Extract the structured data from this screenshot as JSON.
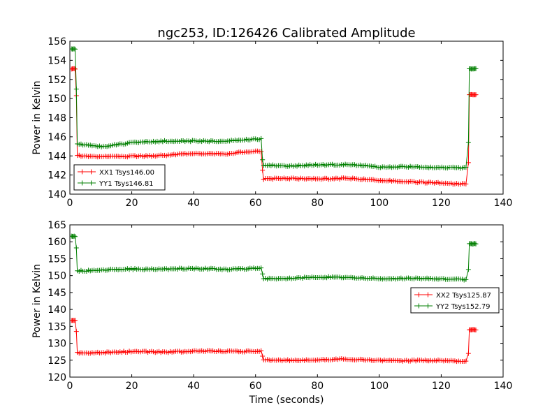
{
  "figure": {
    "title": "ngc253, ID:126426 Calibrated Amplitude",
    "shared_xlabel": "Time (seconds)"
  },
  "chart_data": [
    {
      "type": "line",
      "title": "ngc253, ID:126426 Calibrated Amplitude",
      "xlabel": "",
      "ylabel": "Power in Kelvin",
      "xlim": [
        0,
        140
      ],
      "ylim": [
        140,
        156
      ],
      "xticks": [
        0,
        20,
        40,
        60,
        80,
        100,
        120,
        140
      ],
      "yticks": [
        140,
        142,
        144,
        146,
        148,
        150,
        152,
        154,
        156
      ],
      "grid": false,
      "legend_position": "lower-left",
      "marker": "+",
      "segments": [
        {
          "x_start": 0.5,
          "x_end": 1.8,
          "step": 0.3
        },
        {
          "x_start": 2.4,
          "x_end": 61.9,
          "step": 0.6
        },
        {
          "x_start": 62.6,
          "x_end": 128.4,
          "step": 0.6
        },
        {
          "x_start": 129.1,
          "x_end": 131.3,
          "step": 0.3
        }
      ],
      "series": [
        {
          "name": "XX1 Tsys146.00",
          "color": "#ff0000",
          "profile": {
            "start_level": 153.1,
            "first_drop_to": 150.3,
            "mid_level_points": [
              [
                2.4,
                144.0
              ],
              [
                10,
                143.9
              ],
              [
                20,
                144.0
              ],
              [
                30,
                144.0
              ],
              [
                40,
                144.3
              ],
              [
                50,
                144.2
              ],
              [
                58,
                144.4
              ],
              [
                61.9,
                144.5
              ]
            ],
            "second_drop_to": 142.5,
            "low_level_points": [
              [
                62.6,
                141.6
              ],
              [
                70,
                141.6
              ],
              [
                80,
                141.6
              ],
              [
                90,
                141.7
              ],
              [
                100,
                141.4
              ],
              [
                110,
                141.3
              ],
              [
                120,
                141.2
              ],
              [
                128.4,
                141.0
              ]
            ],
            "rise_from": 143.3,
            "end_level": 150.4
          }
        },
        {
          "name": "YY1 Tsys146.81",
          "color": "#007f00",
          "profile": {
            "start_level": 155.2,
            "first_drop_to": 151.0,
            "mid_level_points": [
              [
                2.4,
                145.2
              ],
              [
                10,
                145.0
              ],
              [
                20,
                145.4
              ],
              [
                30,
                145.5
              ],
              [
                40,
                145.6
              ],
              [
                50,
                145.5
              ],
              [
                58,
                145.7
              ],
              [
                61.9,
                145.8
              ]
            ],
            "second_drop_to": 143.6,
            "low_level_points": [
              [
                62.6,
                143.0
              ],
              [
                70,
                142.9
              ],
              [
                80,
                143.1
              ],
              [
                90,
                143.1
              ],
              [
                100,
                142.8
              ],
              [
                110,
                142.9
              ],
              [
                120,
                142.8
              ],
              [
                128.4,
                142.7
              ]
            ],
            "rise_from": 145.4,
            "end_level": 153.1
          }
        }
      ]
    },
    {
      "type": "line",
      "title": "",
      "xlabel": "Time (seconds)",
      "ylabel": "Power in Kelvin",
      "xlim": [
        0,
        140
      ],
      "ylim": [
        120,
        165
      ],
      "xticks": [
        0,
        20,
        40,
        60,
        80,
        100,
        120,
        140
      ],
      "yticks": [
        120,
        125,
        130,
        135,
        140,
        145,
        150,
        155,
        160,
        165
      ],
      "grid": false,
      "legend_position": "right",
      "marker": "+",
      "segments": [
        {
          "x_start": 0.5,
          "x_end": 1.8,
          "step": 0.3
        },
        {
          "x_start": 2.4,
          "x_end": 61.9,
          "step": 0.6
        },
        {
          "x_start": 62.6,
          "x_end": 128.4,
          "step": 0.6
        },
        {
          "x_start": 129.1,
          "x_end": 131.3,
          "step": 0.3
        }
      ],
      "series": [
        {
          "name": "XX2 Tsys125.87",
          "color": "#ff0000",
          "profile": {
            "start_level": 136.8,
            "first_drop_to": 133.5,
            "mid_level_points": [
              [
                2.4,
                127.3
              ],
              [
                10,
                127.3
              ],
              [
                20,
                127.4
              ],
              [
                30,
                127.5
              ],
              [
                40,
                127.6
              ],
              [
                50,
                127.6
              ],
              [
                61.9,
                127.8
              ]
            ],
            "second_drop_to": 126.2,
            "low_level_points": [
              [
                62.6,
                125.0
              ],
              [
                70,
                125.1
              ],
              [
                80,
                125.1
              ],
              [
                90,
                125.2
              ],
              [
                100,
                125.0
              ],
              [
                110,
                124.9
              ],
              [
                120,
                124.8
              ],
              [
                128.4,
                124.7
              ]
            ],
            "rise_from": 127.0,
            "end_level": 134.0
          }
        },
        {
          "name": "YY2 Tsys152.79",
          "color": "#007f00",
          "profile": {
            "start_level": 161.6,
            "first_drop_to": 158.2,
            "mid_level_points": [
              [
                2.4,
                151.5
              ],
              [
                10,
                151.6
              ],
              [
                20,
                151.9
              ],
              [
                30,
                152.0
              ],
              [
                40,
                152.0
              ],
              [
                50,
                151.9
              ],
              [
                61.9,
                152.2
              ]
            ],
            "second_drop_to": 150.5,
            "low_level_points": [
              [
                62.6,
                149.2
              ],
              [
                70,
                149.3
              ],
              [
                80,
                149.4
              ],
              [
                90,
                149.5
              ],
              [
                100,
                149.2
              ],
              [
                110,
                149.1
              ],
              [
                120,
                149.0
              ],
              [
                128.4,
                148.9
              ]
            ],
            "rise_from": 151.8,
            "end_level": 159.4
          }
        }
      ]
    }
  ]
}
